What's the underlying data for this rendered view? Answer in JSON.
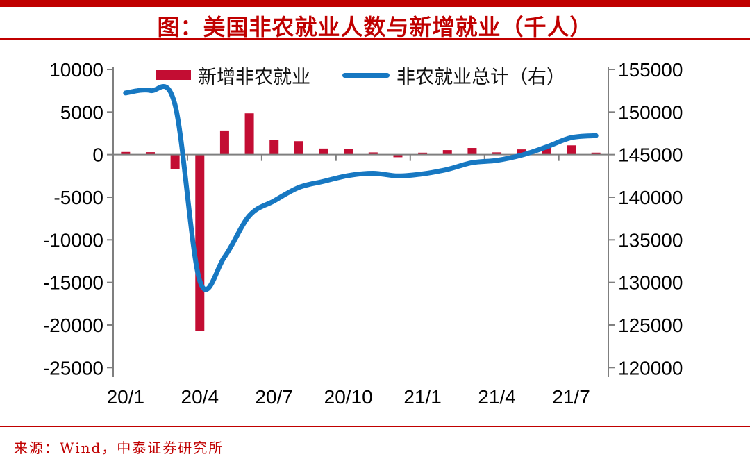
{
  "colors": {
    "brand_red": "#c00000",
    "bar_red": "#c30d33",
    "line_blue": "#1778c2",
    "axis_gray": "#7f7f7f",
    "text_black": "#000000"
  },
  "header": {
    "title": "图：美国非农就业人数与新增就业（千人）"
  },
  "footer": {
    "source": "来源：Wind，中泰证券研究所"
  },
  "chart_data": {
    "type": "bar+line combo",
    "title": "图：美国非农就业人数与新增就业（千人）",
    "categories": [
      "20/1",
      "20/2",
      "20/3",
      "20/4",
      "20/5",
      "20/6",
      "20/7",
      "20/8",
      "20/9",
      "20/10",
      "20/11",
      "20/12",
      "21/1",
      "21/2",
      "21/3",
      "21/4",
      "21/5",
      "21/6",
      "21/7",
      "21/8"
    ],
    "x_tick_labels": [
      "20/1",
      "20/4",
      "20/7",
      "20/10",
      "21/1",
      "21/4",
      "21/7"
    ],
    "x_tick_indices": [
      0,
      3,
      6,
      9,
      12,
      15,
      18
    ],
    "series": [
      {
        "name": "新增非农就业",
        "type": "bar",
        "axis": "left",
        "color": "#c30d33",
        "values": [
          315,
          289,
          -1683,
          -20679,
          2833,
          4846,
          1726,
          1583,
          716,
          680,
          264,
          -306,
          233,
          536,
          785,
          269,
          614,
          962,
          1091,
          235
        ]
      },
      {
        "name": "非农就业总计（右）",
        "type": "line",
        "axis": "right",
        "color": "#1778c2",
        "values": [
          152234,
          152523,
          150840,
          130161,
          132994,
          137840,
          139566,
          141149,
          141865,
          142545,
          142809,
          142503,
          142736,
          143272,
          144057,
          144326,
          144940,
          145902,
          146993,
          147228
        ]
      }
    ],
    "left_axis": {
      "min": -25000,
      "max": 10000,
      "step": 5000,
      "ticks": [
        10000,
        5000,
        0,
        -5000,
        -10000,
        -15000,
        -20000,
        -25000
      ]
    },
    "right_axis": {
      "min": 120000,
      "max": 155000,
      "step": 5000,
      "ticks": [
        155000,
        150000,
        145000,
        140000,
        135000,
        130000,
        125000,
        120000
      ]
    },
    "legend_position": "top-center",
    "grid": false
  }
}
